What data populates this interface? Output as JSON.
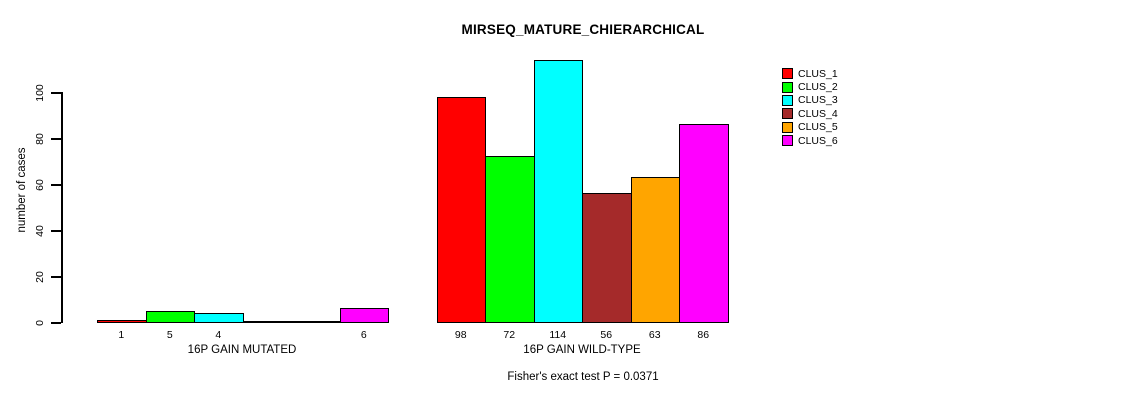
{
  "figure": {
    "background": "#FFFFFF"
  },
  "chart_data": {
    "type": "bar",
    "title": "MIRSEQ_MATURE_CHIERARCHICAL",
    "ylabel": "number of cases",
    "xlabel": "",
    "xlabel_groups": [
      "16P GAIN MUTATED",
      "16P GAIN WILD-TYPE"
    ],
    "y_ticks": [
      0,
      20,
      40,
      60,
      80,
      100
    ],
    "ylim": [
      0,
      115
    ],
    "grid": false,
    "legend_position": "top-right-outside",
    "series": [
      {
        "name": "CLUS_1",
        "color": "#FF0000",
        "values": [
          1,
          98
        ]
      },
      {
        "name": "CLUS_2",
        "color": "#00FF00",
        "values": [
          5,
          72
        ]
      },
      {
        "name": "CLUS_3",
        "color": "#00FFFF",
        "values": [
          4,
          114
        ]
      },
      {
        "name": "CLUS_4",
        "color": "#A52A2A",
        "values": [
          0,
          56
        ]
      },
      {
        "name": "CLUS_5",
        "color": "#FFA500",
        "values": [
          0,
          63
        ]
      },
      {
        "name": "CLUS_6",
        "color": "#FF00FF",
        "values": [
          6,
          86
        ]
      }
    ],
    "bar_labels": [
      [
        "1",
        "5",
        "4",
        "",
        "",
        "6"
      ],
      [
        "98",
        "72",
        "114",
        "56",
        "63",
        "86"
      ]
    ],
    "caption": "Fisher's exact test P = 0.0371"
  }
}
